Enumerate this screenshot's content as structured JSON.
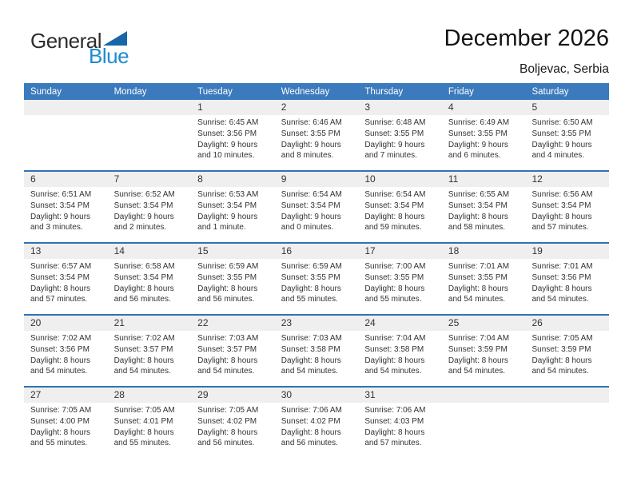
{
  "logo": {
    "line1": "General",
    "line2": "Blue"
  },
  "header": {
    "title": "December 2026",
    "subtitle": "Boljevac, Serbia"
  },
  "colors": {
    "header-bg": "#3a7abd",
    "week-line": "#2e74b5",
    "band-bg": "#efefef",
    "logo-blue": "#1e8bd1",
    "logo-triangle": "#1766a9"
  },
  "weekday_headers": [
    "Sunday",
    "Monday",
    "Tuesday",
    "Wednesday",
    "Thursday",
    "Friday",
    "Saturday"
  ],
  "weeks": [
    [
      {
        "day": "",
        "lines": []
      },
      {
        "day": "",
        "lines": []
      },
      {
        "day": "1",
        "lines": [
          "Sunrise: 6:45 AM",
          "Sunset: 3:56 PM",
          "Daylight: 9 hours",
          "and 10 minutes."
        ]
      },
      {
        "day": "2",
        "lines": [
          "Sunrise: 6:46 AM",
          "Sunset: 3:55 PM",
          "Daylight: 9 hours",
          "and 8 minutes."
        ]
      },
      {
        "day": "3",
        "lines": [
          "Sunrise: 6:48 AM",
          "Sunset: 3:55 PM",
          "Daylight: 9 hours",
          "and 7 minutes."
        ]
      },
      {
        "day": "4",
        "lines": [
          "Sunrise: 6:49 AM",
          "Sunset: 3:55 PM",
          "Daylight: 9 hours",
          "and 6 minutes."
        ]
      },
      {
        "day": "5",
        "lines": [
          "Sunrise: 6:50 AM",
          "Sunset: 3:55 PM",
          "Daylight: 9 hours",
          "and 4 minutes."
        ]
      }
    ],
    [
      {
        "day": "6",
        "lines": [
          "Sunrise: 6:51 AM",
          "Sunset: 3:54 PM",
          "Daylight: 9 hours",
          "and 3 minutes."
        ]
      },
      {
        "day": "7",
        "lines": [
          "Sunrise: 6:52 AM",
          "Sunset: 3:54 PM",
          "Daylight: 9 hours",
          "and 2 minutes."
        ]
      },
      {
        "day": "8",
        "lines": [
          "Sunrise: 6:53 AM",
          "Sunset: 3:54 PM",
          "Daylight: 9 hours",
          "and 1 minute."
        ]
      },
      {
        "day": "9",
        "lines": [
          "Sunrise: 6:54 AM",
          "Sunset: 3:54 PM",
          "Daylight: 9 hours",
          "and 0 minutes."
        ]
      },
      {
        "day": "10",
        "lines": [
          "Sunrise: 6:54 AM",
          "Sunset: 3:54 PM",
          "Daylight: 8 hours",
          "and 59 minutes."
        ]
      },
      {
        "day": "11",
        "lines": [
          "Sunrise: 6:55 AM",
          "Sunset: 3:54 PM",
          "Daylight: 8 hours",
          "and 58 minutes."
        ]
      },
      {
        "day": "12",
        "lines": [
          "Sunrise: 6:56 AM",
          "Sunset: 3:54 PM",
          "Daylight: 8 hours",
          "and 57 minutes."
        ]
      }
    ],
    [
      {
        "day": "13",
        "lines": [
          "Sunrise: 6:57 AM",
          "Sunset: 3:54 PM",
          "Daylight: 8 hours",
          "and 57 minutes."
        ]
      },
      {
        "day": "14",
        "lines": [
          "Sunrise: 6:58 AM",
          "Sunset: 3:54 PM",
          "Daylight: 8 hours",
          "and 56 minutes."
        ]
      },
      {
        "day": "15",
        "lines": [
          "Sunrise: 6:59 AM",
          "Sunset: 3:55 PM",
          "Daylight: 8 hours",
          "and 56 minutes."
        ]
      },
      {
        "day": "16",
        "lines": [
          "Sunrise: 6:59 AM",
          "Sunset: 3:55 PM",
          "Daylight: 8 hours",
          "and 55 minutes."
        ]
      },
      {
        "day": "17",
        "lines": [
          "Sunrise: 7:00 AM",
          "Sunset: 3:55 PM",
          "Daylight: 8 hours",
          "and 55 minutes."
        ]
      },
      {
        "day": "18",
        "lines": [
          "Sunrise: 7:01 AM",
          "Sunset: 3:55 PM",
          "Daylight: 8 hours",
          "and 54 minutes."
        ]
      },
      {
        "day": "19",
        "lines": [
          "Sunrise: 7:01 AM",
          "Sunset: 3:56 PM",
          "Daylight: 8 hours",
          "and 54 minutes."
        ]
      }
    ],
    [
      {
        "day": "20",
        "lines": [
          "Sunrise: 7:02 AM",
          "Sunset: 3:56 PM",
          "Daylight: 8 hours",
          "and 54 minutes."
        ]
      },
      {
        "day": "21",
        "lines": [
          "Sunrise: 7:02 AM",
          "Sunset: 3:57 PM",
          "Daylight: 8 hours",
          "and 54 minutes."
        ]
      },
      {
        "day": "22",
        "lines": [
          "Sunrise: 7:03 AM",
          "Sunset: 3:57 PM",
          "Daylight: 8 hours",
          "and 54 minutes."
        ]
      },
      {
        "day": "23",
        "lines": [
          "Sunrise: 7:03 AM",
          "Sunset: 3:58 PM",
          "Daylight: 8 hours",
          "and 54 minutes."
        ]
      },
      {
        "day": "24",
        "lines": [
          "Sunrise: 7:04 AM",
          "Sunset: 3:58 PM",
          "Daylight: 8 hours",
          "and 54 minutes."
        ]
      },
      {
        "day": "25",
        "lines": [
          "Sunrise: 7:04 AM",
          "Sunset: 3:59 PM",
          "Daylight: 8 hours",
          "and 54 minutes."
        ]
      },
      {
        "day": "26",
        "lines": [
          "Sunrise: 7:05 AM",
          "Sunset: 3:59 PM",
          "Daylight: 8 hours",
          "and 54 minutes."
        ]
      }
    ],
    [
      {
        "day": "27",
        "lines": [
          "Sunrise: 7:05 AM",
          "Sunset: 4:00 PM",
          "Daylight: 8 hours",
          "and 55 minutes."
        ]
      },
      {
        "day": "28",
        "lines": [
          "Sunrise: 7:05 AM",
          "Sunset: 4:01 PM",
          "Daylight: 8 hours",
          "and 55 minutes."
        ]
      },
      {
        "day": "29",
        "lines": [
          "Sunrise: 7:05 AM",
          "Sunset: 4:02 PM",
          "Daylight: 8 hours",
          "and 56 minutes."
        ]
      },
      {
        "day": "30",
        "lines": [
          "Sunrise: 7:06 AM",
          "Sunset: 4:02 PM",
          "Daylight: 8 hours",
          "and 56 minutes."
        ]
      },
      {
        "day": "31",
        "lines": [
          "Sunrise: 7:06 AM",
          "Sunset: 4:03 PM",
          "Daylight: 8 hours",
          "and 57 minutes."
        ]
      },
      {
        "day": "",
        "lines": []
      },
      {
        "day": "",
        "lines": []
      }
    ]
  ]
}
